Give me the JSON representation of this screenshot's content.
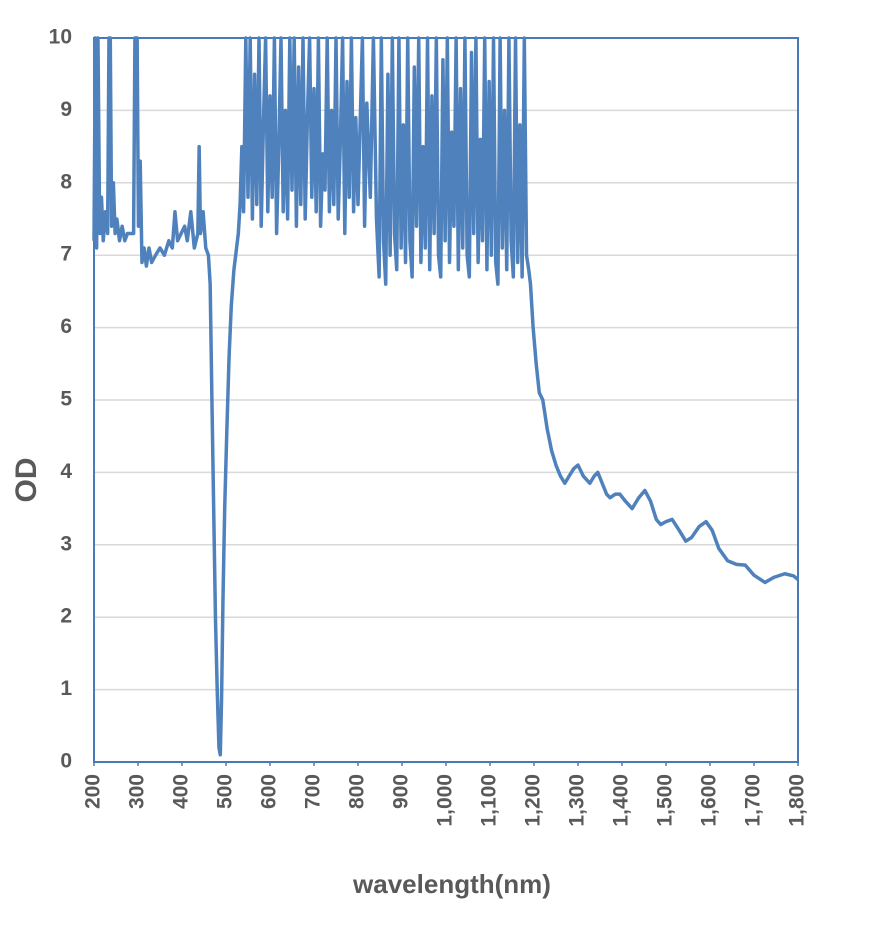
{
  "chart_data": {
    "type": "line",
    "xlabel": "wavelength(nm)",
    "ylabel": "OD",
    "series": [
      {
        "name": "OD",
        "color": "#4f81bd",
        "x": [
          200,
          203,
          206,
          209,
          213,
          217,
          221,
          226,
          231,
          234,
          237,
          240,
          244,
          248,
          252,
          258,
          264,
          270,
          276,
          290,
          293,
          298,
          301,
          305,
          309,
          314,
          319,
          325,
          331,
          340,
          350,
          360,
          370,
          378,
          384,
          390,
          398,
          406,
          412,
          420,
          428,
          436,
          439,
          442,
          448,
          454,
          460,
          464,
          468,
          472,
          476,
          480,
          484,
          487,
          490,
          493,
          497,
          502,
          507,
          512,
          518,
          524,
          528,
          532,
          536,
          540,
          545,
          550,
          555,
          560,
          565,
          570,
          575,
          580,
          585,
          590,
          595,
          600,
          605,
          610,
          615,
          620,
          625,
          630,
          635,
          640,
          645,
          650,
          655,
          660,
          665,
          670,
          675,
          680,
          685,
          690,
          695,
          700,
          705,
          710,
          715,
          720,
          725,
          730,
          735,
          740,
          745,
          750,
          755,
          760,
          765,
          770,
          775,
          780,
          785,
          790,
          795,
          800,
          810,
          815,
          820,
          828,
          835,
          842,
          848,
          853,
          858,
          863,
          868,
          873,
          878,
          883,
          888,
          893,
          898,
          903,
          908,
          913,
          918,
          923,
          928,
          933,
          938,
          943,
          948,
          953,
          958,
          963,
          968,
          973,
          978,
          983,
          988,
          993,
          998,
          1003,
          1008,
          1013,
          1018,
          1023,
          1028,
          1033,
          1038,
          1043,
          1048,
          1053,
          1058,
          1063,
          1068,
          1073,
          1078,
          1083,
          1088,
          1093,
          1098,
          1103,
          1108,
          1113,
          1118,
          1123,
          1128,
          1133,
          1138,
          1143,
          1148,
          1153,
          1158,
          1163,
          1168,
          1173,
          1178,
          1183,
          1188,
          1192,
          1198,
          1205,
          1212,
          1220,
          1230,
          1240,
          1250,
          1260,
          1270,
          1280,
          1290,
          1300,
          1312,
          1327,
          1337,
          1345,
          1355,
          1365,
          1373,
          1385,
          1395,
          1408,
          1423,
          1438,
          1452,
          1465,
          1478,
          1488,
          1500,
          1514,
          1530,
          1545,
          1558,
          1575,
          1591,
          1605,
          1620,
          1640,
          1660,
          1680,
          1700,
          1725,
          1745,
          1770,
          1790,
          1800
        ],
        "values": [
          7.2,
          10,
          7.1,
          10,
          7.3,
          7.8,
          7.2,
          7.6,
          7.3,
          10,
          10,
          7.4,
          8.0,
          7.3,
          7.5,
          7.2,
          7.4,
          7.2,
          7.3,
          7.3,
          10,
          10,
          7.4,
          8.3,
          6.9,
          7.1,
          6.85,
          7.1,
          6.9,
          7.0,
          7.1,
          7.0,
          7.2,
          7.1,
          7.6,
          7.2,
          7.3,
          7.4,
          7.2,
          7.6,
          7.1,
          7.3,
          8.5,
          7.3,
          7.6,
          7.1,
          7.0,
          6.6,
          5.0,
          3.5,
          2.0,
          1.0,
          0.2,
          0.1,
          0.9,
          2.2,
          3.5,
          4.6,
          5.6,
          6.3,
          6.8,
          7.1,
          7.3,
          7.7,
          8.5,
          7.6,
          10,
          7.8,
          10,
          7.5,
          9.5,
          7.7,
          10,
          7.4,
          8.8,
          10,
          7.6,
          9.2,
          7.8,
          10,
          7.3,
          8.5,
          10,
          7.6,
          9.0,
          7.5,
          10,
          7.9,
          10,
          7.4,
          9.6,
          7.7,
          10,
          7.5,
          8.9,
          10,
          7.8,
          9.3,
          7.6,
          10,
          7.4,
          8.4,
          7.9,
          10,
          7.6,
          9.0,
          7.7,
          10,
          7.5,
          8.6,
          10,
          7.3,
          9.4,
          7.8,
          10,
          7.6,
          8.9,
          7.7,
          10,
          7.4,
          9.1,
          7.8,
          10,
          7.5,
          6.7,
          10,
          7.2,
          6.6,
          9.5,
          7.0,
          10,
          7.3,
          6.8,
          10,
          7.1,
          8.8,
          6.9,
          10,
          7.2,
          6.7,
          9.6,
          7.4,
          10,
          6.9,
          8.5,
          7.1,
          10,
          6.8,
          9.2,
          7.3,
          10,
          7.0,
          6.7,
          9.7,
          7.2,
          10,
          6.9,
          8.7,
          7.4,
          10,
          6.8,
          9.3,
          7.1,
          10,
          7.0,
          6.7,
          9.8,
          7.3,
          10,
          6.9,
          8.6,
          7.2,
          10,
          6.8,
          9.4,
          7.0,
          10,
          6.9,
          6.6,
          10,
          7.1,
          9.0,
          6.8,
          10,
          7.2,
          6.7,
          10,
          6.9,
          8.8,
          6.7,
          10,
          7.0,
          6.8,
          6.6,
          6.0,
          5.5,
          5.1,
          5.0,
          4.6,
          4.3,
          4.1,
          3.95,
          3.85,
          3.95,
          4.05,
          4.1,
          3.95,
          3.85,
          3.95,
          4.0,
          3.85,
          3.7,
          3.65,
          3.7,
          3.7,
          3.6,
          3.5,
          3.65,
          3.75,
          3.6,
          3.35,
          3.28,
          3.32,
          3.35,
          3.2,
          3.05,
          3.1,
          3.25,
          3.32,
          3.2,
          2.95,
          2.78,
          2.73,
          2.72,
          2.58,
          2.48,
          2.55,
          2.6,
          2.57,
          2.52
        ]
      }
    ],
    "xlim": [
      200,
      1800
    ],
    "xticks": [
      200,
      300,
      400,
      500,
      600,
      700,
      800,
      900,
      {
        "value": 1000,
        "label": "1,000"
      },
      {
        "value": 1100,
        "label": "1,100"
      },
      {
        "value": 1200,
        "label": "1,200"
      },
      {
        "value": 1300,
        "label": "1,300"
      },
      {
        "value": 1400,
        "label": "1,400"
      },
      {
        "value": 1500,
        "label": "1,500"
      },
      {
        "value": 1600,
        "label": "1,600"
      },
      {
        "value": 1700,
        "label": "1,700"
      },
      {
        "value": 1800,
        "label": "1,800"
      }
    ],
    "ylim": [
      0,
      10
    ],
    "yticks": [
      0,
      1,
      2,
      3,
      4,
      5,
      6,
      7,
      8,
      9,
      10
    ],
    "grid": true
  }
}
